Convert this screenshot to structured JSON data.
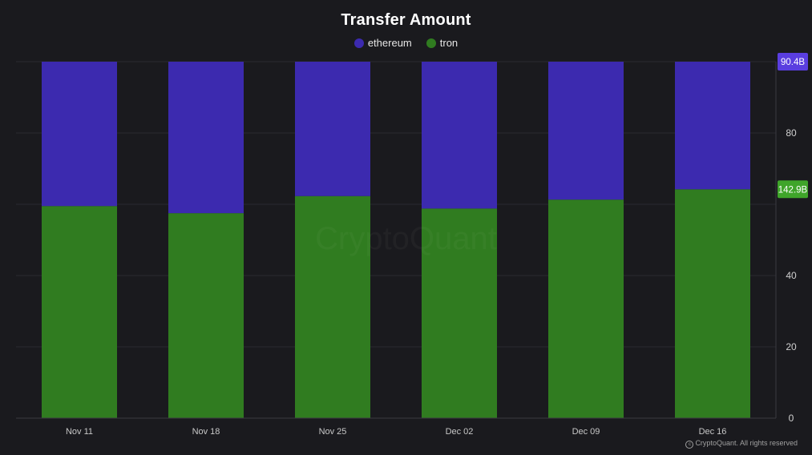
{
  "page": {
    "title": "Transfer Amount",
    "watermark": "CryptoQuant",
    "copyright": "CryptoQuant. All rights reserved",
    "colors": {
      "background": "#1a1a1e",
      "ethereum": "#3c2aaf",
      "tron": "#307c20",
      "ethereum_label_bg": "#5a3ee0",
      "tron_label_bg": "#3fa52a"
    }
  },
  "chart_data": {
    "type": "bar",
    "stacked": true,
    "title": "Transfer Amount",
    "xlabel": "",
    "ylabel": "",
    "categories": [
      "Nov 11",
      "Nov 18",
      "Nov 25",
      "Dec 02",
      "Dec 09",
      "Dec 16"
    ],
    "series": [
      {
        "name": "tron",
        "color": "#307c20",
        "values": [
          59.5,
          57.5,
          62.3,
          58.8,
          61.3,
          64.2
        ],
        "last_value_label": "142.9B"
      },
      {
        "name": "ethereum",
        "color": "#3c2aaf",
        "values": [
          40.5,
          42.5,
          37.7,
          41.2,
          38.7,
          35.8
        ],
        "last_value_label": "90.4B"
      }
    ],
    "ylim": [
      0,
      100
    ],
    "yticks": [
      0,
      20,
      40,
      80
    ],
    "y_axis_side": "right",
    "legend_position": "top-center",
    "grid": true
  }
}
